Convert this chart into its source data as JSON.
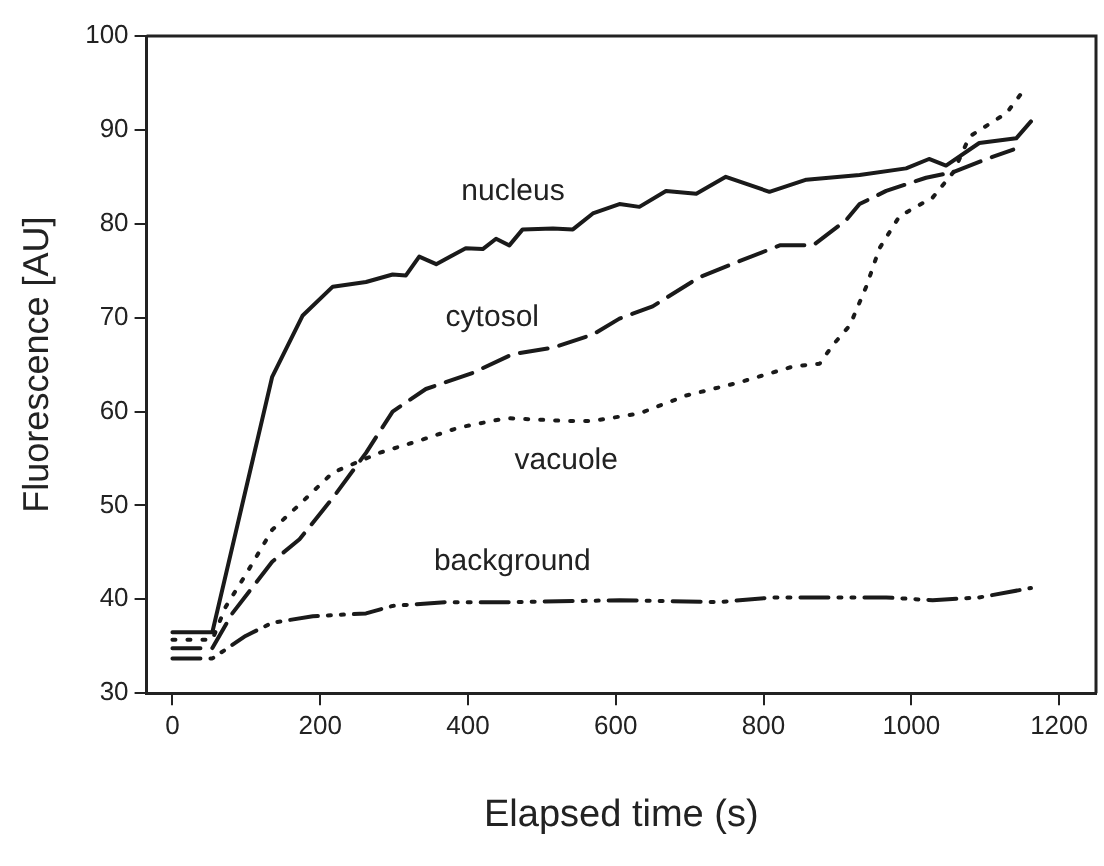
{
  "chart_data": {
    "type": "line",
    "xlabel": "Elapsed time (s)",
    "ylabel": "Fluorescence [AU]",
    "xlim": [
      -35,
      1250
    ],
    "ylim": [
      30,
      100
    ],
    "xticks": [
      0,
      200,
      400,
      600,
      800,
      1000,
      1200
    ],
    "yticks": [
      30,
      40,
      50,
      60,
      70,
      80,
      90,
      100
    ],
    "grid": false,
    "legend": false,
    "marker": "none",
    "series": [
      {
        "name": "nucleus",
        "color": "#1a1a1a",
        "line_style": "solid",
        "x": [
          0,
          54,
          135,
          176,
          217,
          262,
          298,
          316,
          334,
          357,
          397,
          420,
          438,
          456,
          474,
          515,
          542,
          569,
          605,
          632,
          668,
          709,
          749,
          808,
          858,
          930,
          993,
          1024,
          1047,
          1092,
          1142,
          1162
        ],
        "values": [
          36.5,
          36.5,
          63.7,
          70.2,
          73.3,
          73.8,
          74.6,
          74.5,
          76.5,
          75.7,
          77.4,
          77.3,
          78.4,
          77.7,
          79.4,
          79.5,
          79.4,
          81.1,
          82.1,
          81.8,
          83.5,
          83.2,
          85.0,
          83.4,
          84.7,
          85.2,
          85.9,
          86.9,
          86.2,
          88.6,
          89.1,
          90.9
        ]
      },
      {
        "name": "cytosol",
        "color": "#1a1a1a",
        "line_style": "dashed",
        "x": [
          0,
          54,
          81,
          135,
          172,
          217,
          262,
          298,
          343,
          406,
          460,
          515,
          569,
          605,
          650,
          713,
          767,
          822,
          867,
          912,
          930,
          966,
          1020,
          1057,
          1102,
          1138
        ],
        "values": [
          34.8,
          34.8,
          38.5,
          44.0,
          46.4,
          50.8,
          55.6,
          60.0,
          62.4,
          64.1,
          66.1,
          66.8,
          68.2,
          69.9,
          71.2,
          74.3,
          76.0,
          77.7,
          77.7,
          80.4,
          82.1,
          83.5,
          84.9,
          85.5,
          86.9,
          87.9
        ]
      },
      {
        "name": "vacuole",
        "color": "#1a1a1a",
        "line_style": "dotted",
        "x": [
          0,
          54,
          72,
          99,
          135,
          172,
          217,
          280,
          334,
          388,
          452,
          533,
          569,
          632,
          695,
          767,
          840,
          876,
          894,
          917,
          939,
          957,
          984,
          1029,
          1057,
          1079,
          1129,
          1151
        ],
        "values": [
          35.7,
          35.7,
          39.2,
          42.6,
          47.4,
          50.1,
          53.5,
          55.6,
          56.9,
          58.3,
          59.3,
          59.0,
          59.0,
          59.8,
          61.7,
          63.1,
          64.8,
          65.1,
          67.1,
          69.2,
          73.3,
          77.4,
          80.8,
          82.8,
          85.5,
          89.3,
          91.8,
          94.1
        ]
      },
      {
        "name": "background",
        "color": "#1a1a1a",
        "line_style": "dashdot",
        "x": [
          0,
          54,
          99,
          135,
          190,
          262,
          298,
          370,
          460,
          605,
          740,
          812,
          966,
          1029,
          1092,
          1162
        ],
        "values": [
          33.7,
          33.7,
          36.1,
          37.5,
          38.2,
          38.5,
          39.3,
          39.7,
          39.7,
          39.9,
          39.7,
          40.2,
          40.2,
          39.9,
          40.2,
          41.2
        ]
      }
    ]
  }
}
